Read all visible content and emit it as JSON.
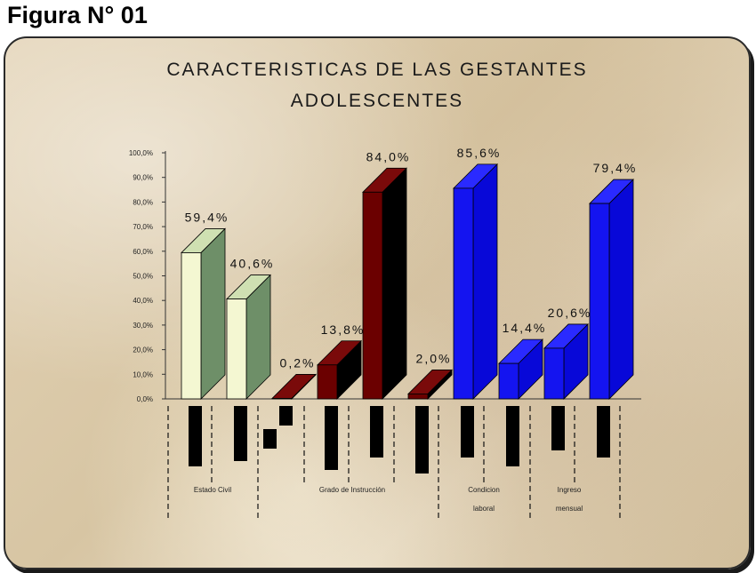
{
  "figure_label": "Figura N° 01",
  "chart_data": {
    "type": "bar",
    "title_lines": [
      "CARACTERISTICAS DE LAS GESTANTES",
      "ADOLESCENTES"
    ],
    "ylim": [
      0,
      100
    ],
    "yticks": [
      "0,0%",
      "10,0%",
      "20,0%",
      "30,0%",
      "40,0%",
      "50,0%",
      "60,0%",
      "70,0%",
      "80,0%",
      "90,0%",
      "100,0%"
    ],
    "bars": [
      {
        "value": 59.4,
        "label": "59,4%",
        "front": "#f4f7d2",
        "side": "#6e8f68",
        "top": "#cfe0b2"
      },
      {
        "value": 40.6,
        "label": "40,6%",
        "front": "#f4f7d2",
        "side": "#6e8f68",
        "top": "#cfe0b2"
      },
      {
        "value": 0.2,
        "label": "0,2%",
        "front": "#6b0000",
        "side": "#000000",
        "top": "#7a0a0a"
      },
      {
        "value": 13.8,
        "label": "13,8%",
        "front": "#6b0000",
        "side": "#000000",
        "top": "#7a0a0a"
      },
      {
        "value": 84.0,
        "label": "84,0%",
        "front": "#6b0000",
        "side": "#000000",
        "top": "#7a0a0a"
      },
      {
        "value": 2.0,
        "label": "2,0%",
        "front": "#6b0000",
        "side": "#000000",
        "top": "#7a0a0a"
      },
      {
        "value": 85.6,
        "label": "85,6%",
        "front": "#1414f0",
        "side": "#0808d8",
        "top": "#2a2aff"
      },
      {
        "value": 14.4,
        "label": "14,4%",
        "front": "#1414f0",
        "side": "#0808d8",
        "top": "#2a2aff"
      },
      {
        "value": 20.6,
        "label": "20,6%",
        "front": "#1414f0",
        "side": "#0808d8",
        "top": "#2a2aff"
      },
      {
        "value": 79.4,
        "label": "79,4%",
        "front": "#1414f0",
        "side": "#0808d8",
        "top": "#2a2aff"
      }
    ],
    "groups": [
      {
        "label": [
          "Estado Civil"
        ],
        "start": 0,
        "end": 2
      },
      {
        "label": [
          "Grado de Instrucción"
        ],
        "start": 2,
        "end": 6
      },
      {
        "label": [
          "Condicion",
          "laboral"
        ],
        "start": 6,
        "end": 8
      },
      {
        "label": [
          "Ingreso",
          "mensual"
        ],
        "start": 8,
        "end": 10
      }
    ]
  }
}
